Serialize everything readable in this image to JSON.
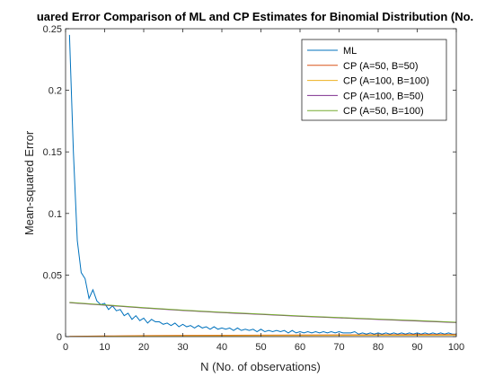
{
  "chart_data": {
    "type": "line",
    "title": "uared Error Comparison of ML and CP Estimates for Binomial Distribution (No.",
    "xlabel": "N (No. of observations)",
    "ylabel": "Mean-squared Error",
    "xlim": [
      0,
      100
    ],
    "ylim": [
      0,
      0.25
    ],
    "xticks": [
      0,
      10,
      20,
      30,
      40,
      50,
      60,
      70,
      80,
      90,
      100
    ],
    "yticks": [
      0,
      0.05,
      0.1,
      0.15,
      0.2,
      0.25
    ],
    "ytick_labels": [
      "0",
      "0.05",
      "0.1",
      "0.15",
      "0.2",
      "0.25"
    ],
    "grid": false,
    "legend_position": "top-right",
    "series": [
      {
        "name": "ML",
        "color": "#0072bd",
        "x": [
          1,
          2,
          3,
          4,
          5,
          6,
          7,
          8,
          9,
          10,
          11,
          12,
          13,
          14,
          15,
          16,
          17,
          18,
          19,
          20,
          21,
          22,
          23,
          24,
          25,
          26,
          27,
          28,
          29,
          30,
          31,
          32,
          33,
          34,
          35,
          36,
          37,
          38,
          39,
          40,
          41,
          42,
          43,
          44,
          45,
          46,
          47,
          48,
          49,
          50,
          51,
          52,
          53,
          54,
          55,
          56,
          57,
          58,
          59,
          60,
          61,
          62,
          63,
          64,
          65,
          66,
          67,
          68,
          69,
          70,
          71,
          72,
          73,
          74,
          75,
          76,
          77,
          78,
          79,
          80,
          81,
          82,
          83,
          84,
          85,
          86,
          87,
          88,
          89,
          90,
          91,
          92,
          93,
          94,
          95,
          96,
          97,
          98,
          99,
          100
        ],
        "y": [
          0.245,
          0.15,
          0.078,
          0.052,
          0.047,
          0.031,
          0.038,
          0.029,
          0.026,
          0.027,
          0.022,
          0.025,
          0.021,
          0.022,
          0.017,
          0.019,
          0.014,
          0.017,
          0.013,
          0.015,
          0.011,
          0.014,
          0.012,
          0.012,
          0.01,
          0.011,
          0.009,
          0.011,
          0.008,
          0.01,
          0.008,
          0.009,
          0.007,
          0.009,
          0.007,
          0.008,
          0.006,
          0.008,
          0.006,
          0.007,
          0.006,
          0.007,
          0.005,
          0.007,
          0.005,
          0.006,
          0.005,
          0.006,
          0.004,
          0.006,
          0.004,
          0.005,
          0.004,
          0.005,
          0.004,
          0.005,
          0.003,
          0.005,
          0.003,
          0.004,
          0.003,
          0.004,
          0.003,
          0.004,
          0.003,
          0.004,
          0.003,
          0.004,
          0.003,
          0.004,
          0.003,
          0.003,
          0.003,
          0.004,
          0.002,
          0.003,
          0.002,
          0.003,
          0.002,
          0.003,
          0.002,
          0.003,
          0.002,
          0.003,
          0.002,
          0.003,
          0.002,
          0.003,
          0.002,
          0.003,
          0.002,
          0.003,
          0.002,
          0.003,
          0.002,
          0.003,
          0.002,
          0.003,
          0.002,
          0.002
        ]
      },
      {
        "name": "CP (A=50, B=50)",
        "color": "#d95319",
        "x": [
          1,
          10,
          20,
          30,
          40,
          50,
          60,
          70,
          80,
          90,
          100
        ],
        "y": [
          0.0002,
          0.0005,
          0.0008,
          0.001,
          0.0011,
          0.0012,
          0.0013,
          0.0014,
          0.0015,
          0.0016,
          0.0016
        ]
      },
      {
        "name": "CP (A=100, B=100)",
        "color": "#edb120",
        "x": [
          1,
          10,
          20,
          30,
          40,
          50,
          60,
          70,
          80,
          90,
          100
        ],
        "y": [
          0.0001,
          0.0003,
          0.0005,
          0.0006,
          0.0007,
          0.0008,
          0.0009,
          0.001,
          0.0011,
          0.0011,
          0.0012
        ]
      },
      {
        "name": "CP (A=100, B=50)",
        "color": "#7e2f8e",
        "x": [
          1,
          10,
          20,
          30,
          40,
          50,
          60,
          70,
          80,
          90,
          100
        ],
        "y": [
          0.0275,
          0.0255,
          0.0232,
          0.0212,
          0.0195,
          0.018,
          0.0165,
          0.0152,
          0.0139,
          0.0127,
          0.0114
        ]
      },
      {
        "name": "CP (A=50, B=100)",
        "color": "#77ac30",
        "x": [
          1,
          10,
          20,
          30,
          40,
          50,
          60,
          70,
          80,
          90,
          100
        ],
        "y": [
          0.0278,
          0.0258,
          0.0235,
          0.0215,
          0.0198,
          0.0183,
          0.0168,
          0.0155,
          0.0142,
          0.013,
          0.0117
        ]
      }
    ]
  }
}
